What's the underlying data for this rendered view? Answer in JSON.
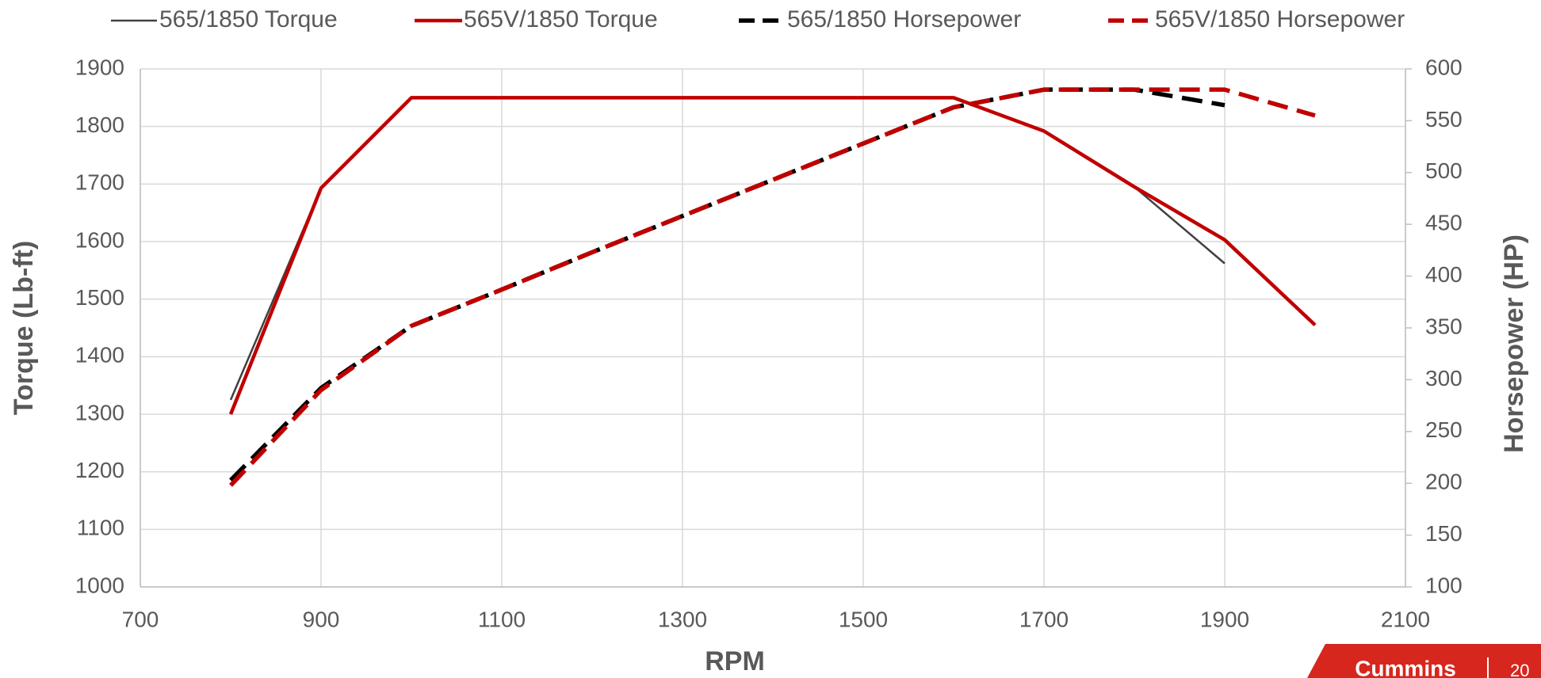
{
  "chart_data": {
    "type": "line",
    "x_label": "RPM",
    "y_label": "Torque (Lb-ft)",
    "y2_label": "Horsepower (HP)",
    "x": [
      800,
      900,
      1000,
      1100,
      1200,
      1300,
      1400,
      1500,
      1600,
      1700,
      1800,
      1900,
      2000
    ],
    "series": [
      {
        "name": "565/1850 Torque",
        "color": "#404040",
        "style": "solid",
        "values": [
          1325,
          1693,
          1850,
          1850,
          1850,
          1850,
          1850,
          1850,
          1850,
          1792,
          1695,
          1562,
          null
        ]
      },
      {
        "name": "565V/1850 Torque",
        "color": "#c00000",
        "style": "solid",
        "values": [
          1300,
          1693,
          1850,
          1850,
          1850,
          1850,
          1850,
          1850,
          1850,
          1792,
          1695,
          1603,
          1455
        ]
      },
      {
        "name": "565/1850 Horsepower",
        "color": "#000000",
        "style": "dashed",
        "axis": "y2",
        "values": [
          203,
          292,
          352,
          387,
          423,
          458,
          493,
          528,
          563,
          580,
          580,
          565,
          null
        ]
      },
      {
        "name": "565V/1850 Horsepower",
        "color": "#c00000",
        "style": "dashed",
        "axis": "y2",
        "values": [
          198,
          290,
          352,
          387,
          423,
          458,
          493,
          528,
          563,
          580,
          580,
          580,
          555
        ]
      }
    ],
    "xlim": [
      700,
      2100
    ],
    "xticks": [
      700,
      900,
      1100,
      1300,
      1500,
      1700,
      1900,
      2100
    ],
    "ylim": [
      1000,
      1900
    ],
    "yticks": [
      1000,
      1100,
      1200,
      1300,
      1400,
      1500,
      1600,
      1700,
      1800,
      1900
    ],
    "y2lim": [
      100,
      600
    ],
    "y2ticks": [
      100,
      150,
      200,
      250,
      300,
      350,
      400,
      450,
      500,
      550,
      600
    ],
    "grid": true,
    "legend": "top"
  },
  "footer": {
    "brand": "Cummins",
    "page": "20"
  }
}
